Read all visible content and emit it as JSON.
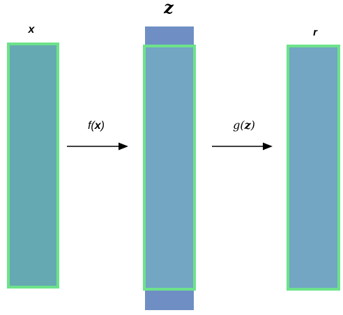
{
  "diagram": {
    "input_label": "x",
    "latent_label": "z",
    "output_label": "r",
    "encoder": {
      "prefix": "f(",
      "variable": "x",
      "suffix": ")"
    },
    "decoder": {
      "prefix": "g(",
      "variable": "z",
      "suffix": ")"
    }
  },
  "colors": {
    "box_border": "#6de28a",
    "input_fill": "#65aab2",
    "latent_outer_fill": "#6f8fc4",
    "latent_inner_fill": "#72a6c3",
    "output_fill": "#72a6c3",
    "arrow": "#000000"
  }
}
